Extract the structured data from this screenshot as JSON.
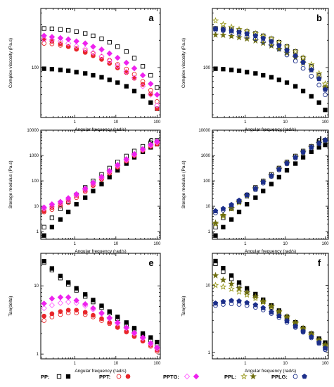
{
  "series_styles": {
    "PP_open": {
      "shape": "square",
      "fill": "none",
      "stroke": "#000000"
    },
    "PP_solid": {
      "shape": "square",
      "fill": "#000000",
      "stroke": "#000000"
    },
    "PPT_open": {
      "shape": "circle",
      "fill": "none",
      "stroke": "#e8262a"
    },
    "PPT_solid": {
      "shape": "circle",
      "fill": "#e8262a",
      "stroke": "#e8262a"
    },
    "PPTG_open": {
      "shape": "diamond",
      "fill": "none",
      "stroke": "#ff66ff"
    },
    "PPTG_solid": {
      "shape": "diamond",
      "fill": "#ee22ee",
      "stroke": "#ee22ee"
    },
    "PPL_open": {
      "shape": "star",
      "fill": "none",
      "stroke": "#9a9a20"
    },
    "PPL_solid": {
      "shape": "star",
      "fill": "#6e6e10",
      "stroke": "#6e6e10"
    },
    "PPLG_open": {
      "shape": "circle",
      "fill": "none",
      "stroke": "#1c2f8a"
    },
    "PPLG_solid": {
      "shape": "pentagon",
      "fill": "#1c2f8a",
      "stroke": "#1c2f8a"
    }
  },
  "legend": {
    "items": [
      {
        "label": "PP:",
        "open": "PP_open",
        "solid": "PP_solid"
      },
      {
        "label": "PPT:",
        "open": "PPT_open",
        "solid": "PPT_solid"
      },
      {
        "label": "PPTG:",
        "open": "PPTG_open",
        "solid": "PPTG_solid"
      },
      {
        "label": "PPL:",
        "open": "PPL_open",
        "solid": "PPL_solid"
      },
      {
        "label": "PPLG:",
        "open": "PPLG_open",
        "solid": "PPLG_solid"
      }
    ]
  },
  "chart_data": [
    {
      "panel": "a",
      "type": "scatter",
      "xlabel": "Angular frequency (rad/s)",
      "ylabel": "Complex viscosity (Pa.s)",
      "xscale": "log",
      "yscale": "log",
      "xlim": [
        0.15,
        120
      ],
      "ylim": [
        28,
        450
      ],
      "xticks": [
        1,
        10,
        100
      ],
      "yticks": [
        100
      ],
      "x": [
        0.18,
        0.28,
        0.45,
        0.7,
        1.1,
        1.8,
        2.8,
        4.5,
        7,
        11,
        18,
        28,
        45,
        70,
        100
      ],
      "series": [
        {
          "style": "PP_open",
          "values": [
            270,
            268,
            264,
            258,
            250,
            238,
            224,
            208,
            190,
            170,
            150,
            127,
            103,
            82,
            60
          ]
        },
        {
          "style": "PP_solid",
          "values": [
            97,
            96,
            94,
            92,
            89,
            86,
            82,
            78,
            73,
            68,
            62,
            55,
            48,
            41,
            35
          ]
        },
        {
          "style": "PPT_open",
          "values": [
            185,
            183,
            176,
            170,
            162,
            153,
            143,
            132,
            120,
            108,
            96,
            84,
            70,
            56,
            42
          ]
        },
        {
          "style": "PPT_solid",
          "values": [
            205,
            195,
            183,
            171,
            159,
            147,
            135,
            123,
            111,
            99,
            88,
            76,
            65,
            51,
            35
          ]
        },
        {
          "style": "PPTG_open",
          "values": [
            205,
            202,
            195,
            185,
            172,
            160,
            146,
            133,
            118,
            104,
            90,
            77,
            62,
            50,
            38
          ]
        },
        {
          "style": "PPTG_solid",
          "values": [
            225,
            218,
            212,
            205,
            195,
            185,
            170,
            158,
            143,
            128,
            113,
            98,
            82,
            66,
            50
          ]
        }
      ]
    },
    {
      "panel": "b",
      "type": "scatter",
      "xlabel": "Angular frequency (rad/s)",
      "ylabel": "Complex viscosity (Pa.s)",
      "xscale": "log",
      "yscale": "log",
      "xlim": [
        0.15,
        120
      ],
      "ylim": [
        28,
        450
      ],
      "xticks": [
        1,
        10,
        100
      ],
      "yticks": [
        100
      ],
      "x": [
        0.18,
        0.28,
        0.45,
        0.7,
        1.1,
        1.8,
        2.8,
        4.5,
        7,
        11,
        18,
        28,
        45,
        70,
        100
      ],
      "series": [
        {
          "style": "PP_open",
          "values": [
            270,
            268,
            264,
            258,
            250,
            238,
            224,
            208,
            190,
            170,
            150,
            127,
            103,
            82,
            60
          ]
        },
        {
          "style": "PP_solid",
          "values": [
            97,
            96,
            94,
            92,
            89,
            86,
            82,
            78,
            73,
            68,
            62,
            55,
            48,
            41,
            34
          ]
        },
        {
          "style": "PPL_open",
          "values": [
            330,
            300,
            280,
            264,
            252,
            238,
            222,
            208,
            190,
            170,
            150,
            128,
            108,
            86,
            66
          ]
        },
        {
          "style": "PPL_solid",
          "values": [
            230,
            228,
            222,
            215,
            208,
            198,
            186,
            174,
            160,
            145,
            129,
            112,
            94,
            77,
            60
          ]
        },
        {
          "style": "PPLG_open",
          "values": [
            260,
            256,
            245,
            234,
            222,
            208,
            193,
            178,
            160,
            138,
            118,
            98,
            80,
            64,
            50
          ]
        },
        {
          "style": "PPLG_solid",
          "values": [
            268,
            262,
            255,
            246,
            236,
            224,
            210,
            194,
            175,
            155,
            135,
            114,
            94,
            75,
            57
          ]
        }
      ]
    },
    {
      "panel": "c",
      "type": "scatter",
      "xlabel": "Angular frequency (rad/s)",
      "ylabel": "Storage modulus (Pa.s)",
      "xscale": "log",
      "yscale": "log",
      "xlim": [
        0.15,
        120
      ],
      "ylim": [
        0.5,
        10000
      ],
      "xticks": [
        1,
        10,
        100
      ],
      "yticks": [
        1,
        10,
        100,
        1000,
        10000
      ],
      "x": [
        0.18,
        0.28,
        0.45,
        0.7,
        1.1,
        1.8,
        2.8,
        4.5,
        7,
        11,
        18,
        28,
        45,
        70,
        100
      ],
      "series": [
        {
          "style": "PP_open",
          "values": [
            1.5,
            3.5,
            8,
            15,
            28,
            55,
            100,
            180,
            320,
            560,
            950,
            1500,
            2300,
            3200,
            4000
          ]
        },
        {
          "style": "PP_solid",
          "values": [
            0.7,
            1.5,
            3,
            6,
            12,
            22,
            40,
            75,
            140,
            260,
            480,
            850,
            1400,
            2100,
            2800
          ]
        },
        {
          "style": "PPT_open",
          "values": [
            6,
            7.5,
            10,
            14,
            22,
            38,
            65,
            115,
            200,
            350,
            600,
            1000,
            1600,
            2300,
            3000
          ]
        },
        {
          "style": "PPT_solid",
          "values": [
            6.5,
            9,
            12,
            17,
            26,
            42,
            70,
            120,
            210,
            360,
            620,
            1000,
            1600,
            2300,
            2800
          ]
        },
        {
          "style": "PPTG_open",
          "values": [
            8,
            10,
            13,
            18,
            27,
            44,
            75,
            130,
            225,
            390,
            660,
            1080,
            1700,
            2500,
            3300
          ]
        },
        {
          "style": "PPTG_solid",
          "values": [
            9,
            12,
            15,
            21,
            30,
            50,
            85,
            145,
            250,
            430,
            720,
            1150,
            1800,
            2700,
            3600
          ]
        }
      ]
    },
    {
      "panel": "d",
      "type": "scatter",
      "xlabel": "Angular frequency (rad/s)",
      "ylabel": "Storage modulus (Pa.s)",
      "xscale": "log",
      "yscale": "log",
      "xlim": [
        0.15,
        120
      ],
      "ylim": [
        0.5,
        10000
      ],
      "xticks": [
        1,
        10,
        100
      ],
      "yticks": [
        1,
        10,
        100,
        1000,
        10000
      ],
      "x": [
        0.18,
        0.28,
        0.45,
        0.7,
        1.1,
        1.8,
        2.8,
        4.5,
        7,
        11,
        18,
        28,
        45,
        70,
        100
      ],
      "series": [
        {
          "style": "PP_open",
          "values": [
            1.5,
            3.5,
            8,
            15,
            28,
            55,
            100,
            180,
            320,
            560,
            950,
            1500,
            2300,
            3200,
            4000
          ]
        },
        {
          "style": "PP_solid",
          "values": [
            0.7,
            1.5,
            3,
            6,
            12,
            22,
            40,
            75,
            140,
            260,
            480,
            850,
            1400,
            2100,
            2600
          ]
        },
        {
          "style": "PPL_open",
          "values": [
            2,
            4,
            8,
            14,
            25,
            48,
            90,
            160,
            290,
            500,
            850,
            1350,
            2100,
            3000,
            3900
          ]
        },
        {
          "style": "PPL_solid",
          "values": [
            2.2,
            4.5,
            8.5,
            15,
            27,
            50,
            92,
            165,
            300,
            520,
            880,
            1400,
            2200,
            3100,
            4000
          ]
        },
        {
          "style": "PPLG_open",
          "values": [
            5.5,
            7,
            10,
            15,
            25,
            45,
            82,
            150,
            270,
            470,
            800,
            1300,
            2000,
            2900,
            3800
          ]
        },
        {
          "style": "PPLG_solid",
          "values": [
            6.5,
            8,
            11.5,
            17,
            28,
            50,
            90,
            160,
            290,
            500,
            850,
            1380,
            2150,
            3100,
            4100
          ]
        }
      ]
    },
    {
      "panel": "e",
      "type": "scatter",
      "xlabel": "Angular frequency (rad/s)",
      "ylabel": "Tan(delta)",
      "xscale": "log",
      "yscale": "log",
      "xlim": [
        0.15,
        120
      ],
      "ylim": [
        0.85,
        30
      ],
      "xticks": [
        1,
        10,
        100
      ],
      "yticks": [
        1,
        10
      ],
      "x": [
        0.18,
        0.28,
        0.45,
        0.7,
        1.1,
        1.8,
        2.8,
        4.5,
        7,
        11,
        18,
        28,
        45,
        70,
        100
      ],
      "series": [
        {
          "style": "PP_open",
          "values": [
            22,
            17,
            13,
            10.5,
            8.6,
            7,
            5.8,
            4.8,
            4,
            3.3,
            2.7,
            2.3,
            1.9,
            1.6,
            1.35
          ]
        },
        {
          "style": "PP_solid",
          "values": [
            23,
            18,
            14,
            11.2,
            9.2,
            7.5,
            6.2,
            5.1,
            4.2,
            3.5,
            2.9,
            2.4,
            2,
            1.75,
            1.5
          ]
        },
        {
          "style": "PPT_open",
          "values": [
            3.1,
            3.5,
            3.8,
            4,
            4,
            3.8,
            3.5,
            3.1,
            2.8,
            2.45,
            2.1,
            1.8,
            1.55,
            1.3,
            1.1
          ]
        },
        {
          "style": "PPT_solid",
          "values": [
            3.6,
            3.9,
            4.2,
            4.4,
            4.4,
            4.1,
            3.7,
            3.3,
            2.9,
            2.5,
            2.15,
            1.85,
            1.55,
            1.35,
            1.15
          ]
        },
        {
          "style": "PPTG_open",
          "values": [
            4.7,
            5.2,
            5.6,
            5.8,
            5.6,
            5.1,
            4.5,
            3.9,
            3.3,
            2.8,
            2.4,
            2,
            1.7,
            1.4,
            1.2
          ]
        },
        {
          "style": "PPTG_solid",
          "values": [
            5.5,
            6.5,
            6.8,
            6.8,
            6.1,
            5.4,
            4.7,
            4,
            3.4,
            2.9,
            2.45,
            2.05,
            1.75,
            1.45,
            1.25
          ]
        }
      ]
    },
    {
      "panel": "f",
      "type": "scatter",
      "xlabel": "Angular frequency (rad/s)",
      "ylabel": "Tan(delta)",
      "xscale": "log",
      "yscale": "log",
      "xlim": [
        0.15,
        120
      ],
      "ylim": [
        0.8,
        30
      ],
      "xticks": [
        1,
        10,
        100
      ],
      "yticks": [
        1,
        10
      ],
      "x": [
        0.18,
        0.28,
        0.45,
        0.7,
        1.1,
        1.8,
        2.8,
        4.5,
        7,
        11,
        18,
        28,
        45,
        70,
        100
      ],
      "series": [
        {
          "style": "PP_open",
          "values": [
            21,
            16,
            12.5,
            10,
            8.3,
            6.9,
            5.7,
            4.7,
            3.9,
            3.2,
            2.65,
            2.2,
            1.8,
            1.5,
            1.3
          ]
        },
        {
          "style": "PP_solid",
          "values": [
            23,
            18,
            14,
            11,
            9,
            7.4,
            6.1,
            5,
            4.2,
            3.4,
            2.8,
            2.3,
            1.9,
            1.6,
            1.4
          ]
        },
        {
          "style": "PPL_open",
          "values": [
            10,
            9.5,
            8.8,
            8,
            7.2,
            6.4,
            5.6,
            4.8,
            4,
            3.3,
            2.7,
            2.2,
            1.8,
            1.5,
            1.25
          ]
        },
        {
          "style": "PPL_solid",
          "values": [
            14,
            12,
            10.5,
            9,
            7.8,
            6.8,
            5.8,
            4.9,
            4.1,
            3.4,
            2.8,
            2.3,
            1.9,
            1.55,
            1.3
          ]
        },
        {
          "style": "PPLG_open",
          "values": [
            5,
            5.2,
            5.3,
            5.2,
            5,
            4.7,
            4.3,
            3.8,
            3.3,
            2.8,
            2.35,
            2,
            1.65,
            1.35,
            1.1
          ]
        },
        {
          "style": "PPLG_solid",
          "values": [
            5.4,
            5.7,
            5.9,
            5.8,
            5.5,
            5.1,
            4.6,
            4,
            3.5,
            2.95,
            2.45,
            2.05,
            1.7,
            1.4,
            1.15
          ]
        }
      ]
    }
  ]
}
